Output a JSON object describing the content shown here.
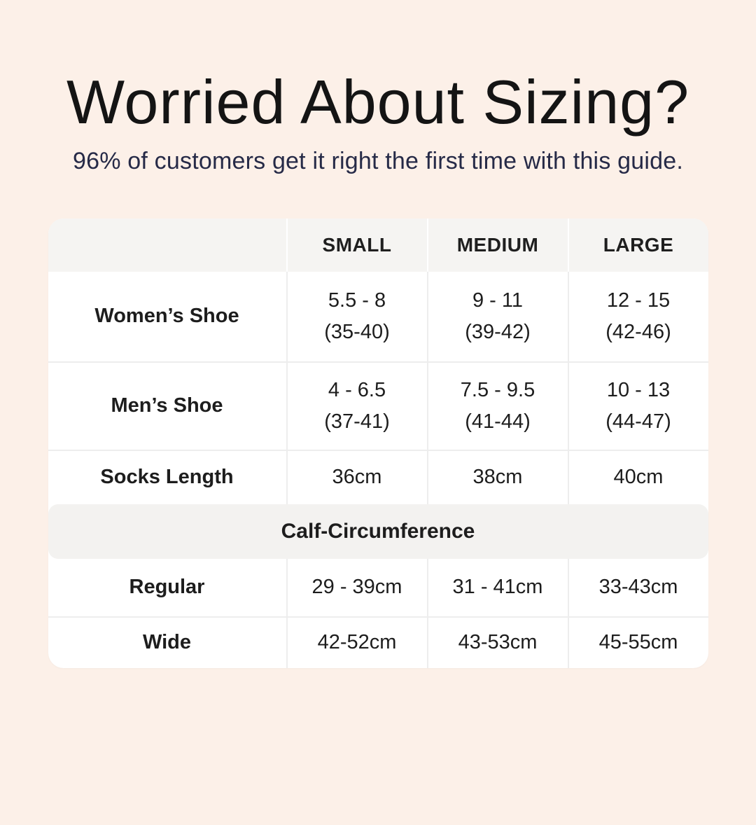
{
  "page": {
    "background_color": "#fcf0e8",
    "title": "Worried About Sizing?",
    "subtitle": "96% of customers get it right the first time with this guide.",
    "title_color": "#141414",
    "subtitle_color": "#262a47"
  },
  "table": {
    "card_color": "#ffffff",
    "header_color": "#f5f4f2",
    "divider_color": "#ededed",
    "columns": {
      "col1": "SMALL",
      "col2": "MEDIUM",
      "col3": "LARGE"
    },
    "rows": [
      {
        "label": "Women’s Shoe",
        "cells": [
          {
            "l1": "5.5 - 8",
            "l2": "(35-40)"
          },
          {
            "l1": "9 - 11",
            "l2": "(39-42)"
          },
          {
            "l1": "12 - 15",
            "l2": "(42-46)"
          }
        ]
      },
      {
        "label": "Men’s Shoe",
        "cells": [
          {
            "l1": "4 - 6.5",
            "l2": "(37-41)"
          },
          {
            "l1": "7.5 - 9.5",
            "l2": "(41-44)"
          },
          {
            "l1": "10 - 13",
            "l2": "(44-47)"
          }
        ]
      },
      {
        "label": "Socks Length",
        "cells": [
          {
            "l1": "36cm"
          },
          {
            "l1": "38cm"
          },
          {
            "l1": "40cm"
          }
        ]
      }
    ],
    "section_header": "Calf-Circumference",
    "calf_rows": [
      {
        "label": "Regular",
        "cells": [
          {
            "l1": "29 - 39cm"
          },
          {
            "l1": "31 - 41cm"
          },
          {
            "l1": "33-43cm"
          }
        ]
      },
      {
        "label": "Wide",
        "cells": [
          {
            "l1": "42-52cm"
          },
          {
            "l1": "43-53cm"
          },
          {
            "l1": "45-55cm"
          }
        ]
      }
    ]
  }
}
